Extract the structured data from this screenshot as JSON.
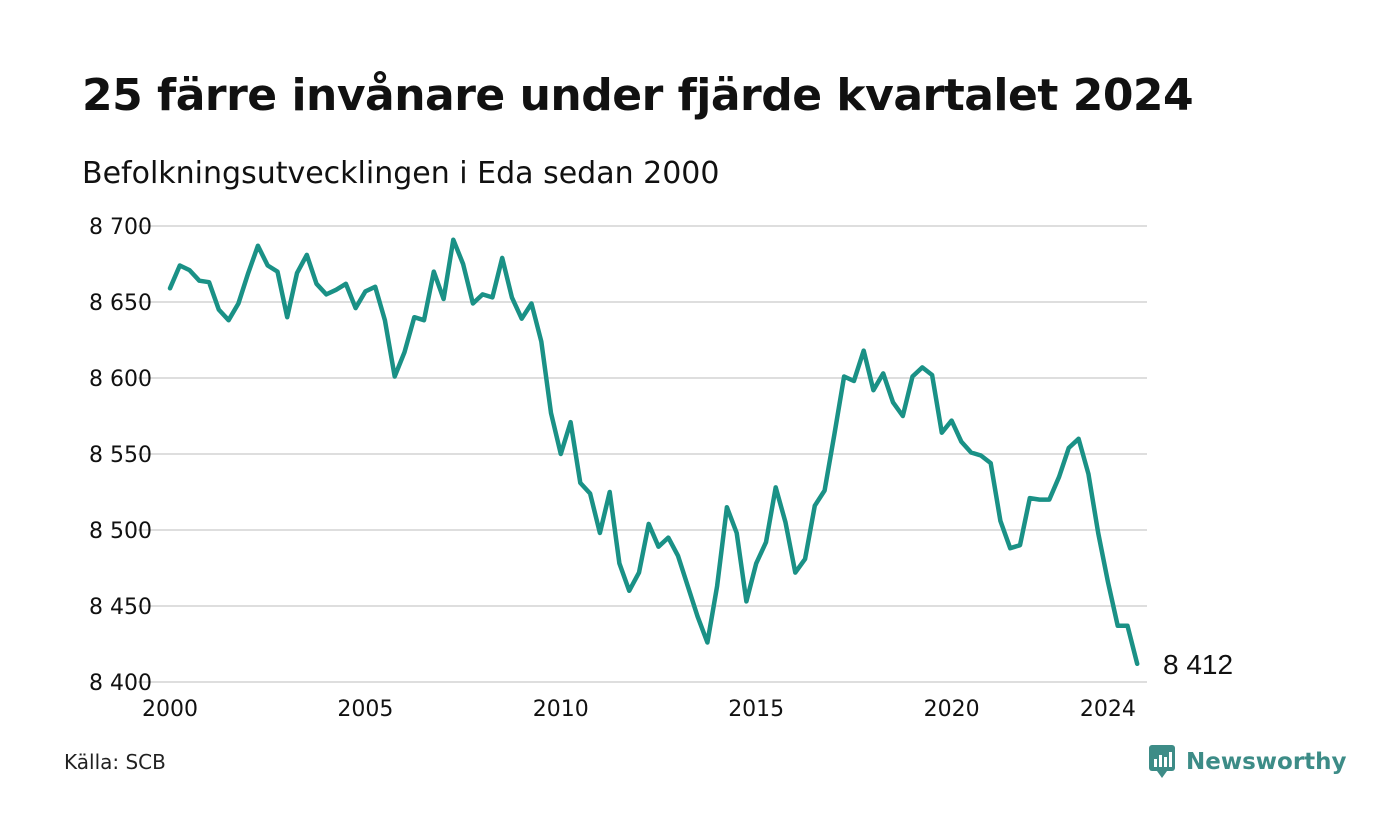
{
  "title": "25 färre invånare under fjärde kvartalet 2024",
  "subtitle": "Befolkningsutvecklingen i Eda sedan 2000",
  "source": "Källa: SCB",
  "brand": {
    "name": "Newsworthy",
    "icon": "newsworthy-logo-icon",
    "color": "#3d8c87"
  },
  "chart_data": {
    "type": "line",
    "title": "25 färre invånare under fjärde kvartalet 2024",
    "subtitle": "Befolkningsutvecklingen i Eda sedan 2000",
    "xlabel": "",
    "ylabel": "",
    "xlim": [
      2000,
      2025
    ],
    "ylim": [
      8400,
      8700
    ],
    "x_ticks": [
      2000,
      2005,
      2010,
      2015,
      2020,
      2024
    ],
    "x_tick_labels": [
      "2000",
      "2005",
      "2010",
      "2015",
      "2020",
      "2024"
    ],
    "y_ticks": [
      8400,
      8450,
      8500,
      8550,
      8600,
      8650,
      8700
    ],
    "y_tick_labels": [
      "8 400",
      "8 450",
      "8 500",
      "8 550",
      "8 600",
      "8 650",
      "8 700"
    ],
    "grid": "horizontal",
    "line_color": "#1a9186",
    "end_label": "8 412",
    "series": [
      {
        "x": [
          "2000 Q1",
          "2000 Q2",
          "2000 Q3",
          "2000 Q4",
          "2001 Q1",
          "2001 Q2",
          "2001 Q3",
          "2001 Q4",
          "2002 Q1",
          "2002 Q2",
          "2002 Q3",
          "2002 Q4",
          "2003 Q1",
          "2003 Q2",
          "2003 Q3",
          "2003 Q4",
          "2004 Q1",
          "2004 Q2",
          "2004 Q3",
          "2004 Q4",
          "2005 Q1",
          "2005 Q2",
          "2005 Q3",
          "2005 Q4",
          "2006 Q1",
          "2006 Q2",
          "2006 Q3",
          "2006 Q4",
          "2007 Q1",
          "2007 Q2",
          "2007 Q3",
          "2007 Q4",
          "2008 Q1",
          "2008 Q2",
          "2008 Q3",
          "2008 Q4",
          "2009 Q1",
          "2009 Q2",
          "2009 Q3",
          "2009 Q4",
          "2010 Q1",
          "2010 Q2",
          "2010 Q3",
          "2010 Q4",
          "2011 Q1",
          "2011 Q2",
          "2011 Q3",
          "2011 Q4",
          "2012 Q1",
          "2012 Q2",
          "2012 Q3",
          "2012 Q4",
          "2013 Q1",
          "2013 Q2",
          "2013 Q3",
          "2013 Q4",
          "2014 Q1",
          "2014 Q2",
          "2014 Q3",
          "2014 Q4",
          "2015 Q1",
          "2015 Q2",
          "2015 Q3",
          "2015 Q4",
          "2016 Q1",
          "2016 Q2",
          "2016 Q3",
          "2016 Q4",
          "2017 Q1",
          "2017 Q2",
          "2017 Q3",
          "2017 Q4",
          "2018 Q1",
          "2018 Q2",
          "2018 Q3",
          "2018 Q4",
          "2019 Q1",
          "2019 Q2",
          "2019 Q3",
          "2019 Q4",
          "2020 Q1",
          "2020 Q2",
          "2020 Q3",
          "2020 Q4",
          "2021 Q1",
          "2021 Q2",
          "2021 Q3",
          "2021 Q4",
          "2022 Q1",
          "2022 Q2",
          "2022 Q3",
          "2022 Q4",
          "2023 Q1",
          "2023 Q2",
          "2023 Q3",
          "2023 Q4",
          "2024 Q1",
          "2024 Q2",
          "2024 Q3",
          "2024 Q4"
        ],
        "values": [
          8659,
          8674,
          8671,
          8664,
          8663,
          8645,
          8638,
          8649,
          8669,
          8687,
          8674,
          8670,
          8640,
          8669,
          8681,
          8662,
          8655,
          8658,
          8662,
          8646,
          8657,
          8660,
          8638,
          8601,
          8617,
          8640,
          8638,
          8670,
          8652,
          8691,
          8675,
          8649,
          8655,
          8653,
          8679,
          8653,
          8639,
          8649,
          8624,
          8577,
          8550,
          8571,
          8531,
          8524,
          8498,
          8525,
          8478,
          8460,
          8472,
          8504,
          8489,
          8495,
          8483,
          8463,
          8443,
          8426,
          8463,
          8515,
          8498,
          8453,
          8478,
          8492,
          8528,
          8505,
          8472,
          8481,
          8516,
          8526,
          8563,
          8601,
          8598,
          8618,
          8592,
          8603,
          8584,
          8575,
          8601,
          8607,
          8602,
          8564,
          8572,
          8558,
          8551,
          8549,
          8544,
          8506,
          8488,
          8490,
          8521,
          8520,
          8520,
          8535,
          8554,
          8560,
          8537,
          8498,
          8466,
          8437,
          8437,
          8412
        ]
      }
    ]
  }
}
